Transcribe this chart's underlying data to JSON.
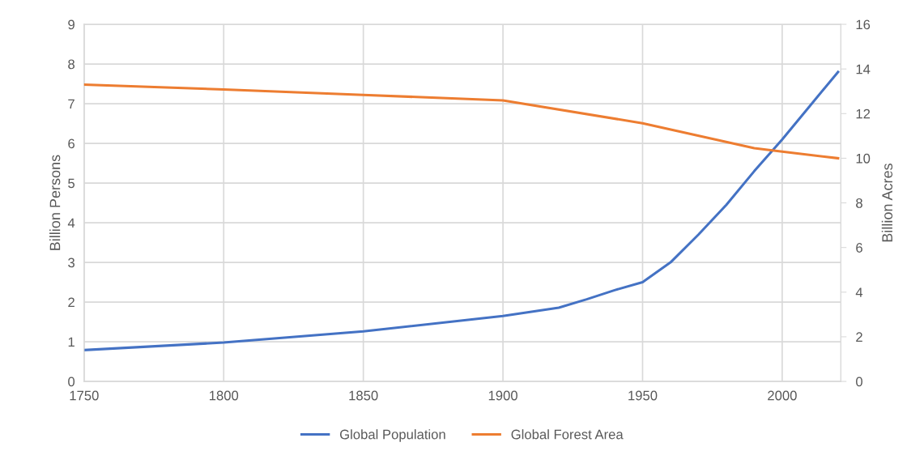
{
  "chart_data": {
    "type": "line",
    "ylabel": "Billion Persons",
    "y2label": "Billion Acres",
    "xlim": [
      1750,
      2021
    ],
    "xticks": [
      1750,
      1800,
      1850,
      1900,
      1950,
      2000
    ],
    "ylim": [
      0,
      9
    ],
    "yticks": [
      0,
      1,
      2,
      3,
      4,
      5,
      6,
      7,
      8,
      9
    ],
    "y2lim": [
      0,
      16
    ],
    "y2ticks": [
      0,
      2,
      4,
      6,
      8,
      10,
      12,
      14,
      16
    ],
    "grid": true,
    "legend": "bottom",
    "marker": "none",
    "line_style": "solid",
    "series": [
      {
        "name": "Global Population",
        "color": "#4472c4",
        "x": [
          1750,
          1800,
          1850,
          1900,
          1920,
          1930,
          1940,
          1950,
          1960,
          1970,
          1980,
          1990,
          2000,
          2010,
          2020
        ],
        "values": [
          0.79,
          0.98,
          1.26,
          1.65,
          1.86,
          2.07,
          2.3,
          2.5,
          3.0,
          3.7,
          4.45,
          5.3,
          6.1,
          6.95,
          7.8
        ]
      },
      {
        "name": "Global Forest Area",
        "color": "#ed7d31",
        "axis": "y2",
        "x": [
          1750,
          1800,
          1850,
          1900,
          1950,
          1990,
          2000,
          2020
        ],
        "values": [
          13.3,
          13.08,
          12.84,
          12.59,
          11.57,
          10.45,
          10.3,
          10.0
        ]
      }
    ]
  }
}
